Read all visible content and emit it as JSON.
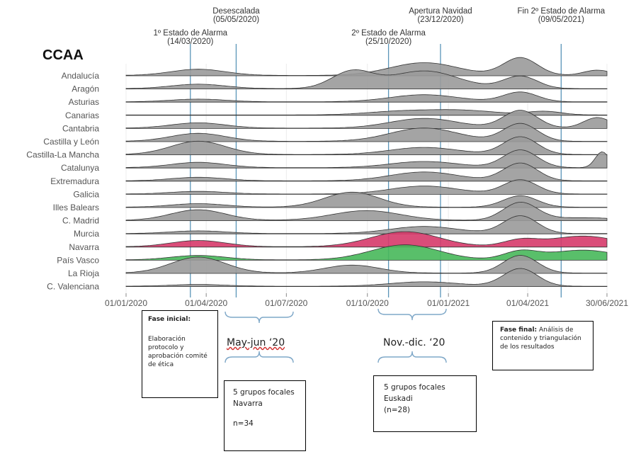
{
  "chart_data": {
    "type": "ridgeline",
    "title": "CCAA",
    "x_range": [
      "2020-01-01",
      "2021-06-30"
    ],
    "x_ticks": [
      "01/01/2020",
      "01/04/2020",
      "01/07/2020",
      "01/10/2020",
      "01/01/2021",
      "01/04/2021",
      "30/06/2021"
    ],
    "events": [
      {
        "label": "1º Estado de Alarma",
        "date_label": "(14/03/2020)",
        "date": "2020-03-14"
      },
      {
        "label": "Desescalada",
        "date_label": "(05/05/2020)",
        "date": "2020-05-05"
      },
      {
        "label": "2º Estado de Alarma",
        "date_label": "(25/10/2020)",
        "date": "2020-10-25"
      },
      {
        "label": "Apertura Navidad",
        "date_label": "(23/12/2020)",
        "date": "2020-12-23"
      },
      {
        "label": "Fin 2º Estado de Alarma",
        "date_label": "(09/05/2021)",
        "date": "2021-05-09"
      }
    ],
    "series": [
      {
        "name": "Andalucía",
        "highlight": "none",
        "peaks": [
          [
            0.15,
            0.35,
            0.08
          ],
          [
            0.62,
            0.72,
            0.1
          ],
          [
            0.82,
            1.0,
            0.05
          ],
          [
            0.98,
            0.3,
            0.04
          ]
        ]
      },
      {
        "name": "Aragón",
        "highlight": "none",
        "peaks": [
          [
            0.15,
            0.25,
            0.08
          ],
          [
            0.47,
            0.95,
            0.06
          ],
          [
            0.62,
            1.0,
            0.1
          ],
          [
            0.82,
            0.7,
            0.05
          ]
        ]
      },
      {
        "name": "Asturias",
        "highlight": "none",
        "peaks": [
          [
            0.15,
            0.15,
            0.08
          ],
          [
            0.62,
            0.4,
            0.1
          ],
          [
            0.82,
            0.55,
            0.05
          ]
        ]
      },
      {
        "name": "Canarias",
        "highlight": "none",
        "peaks": [
          [
            0.57,
            0.2,
            0.1
          ],
          [
            0.7,
            0.25,
            0.1
          ],
          [
            0.87,
            0.2,
            0.05
          ]
        ]
      },
      {
        "name": "Cantabria",
        "highlight": "none",
        "peaks": [
          [
            0.15,
            0.3,
            0.08
          ],
          [
            0.62,
            0.55,
            0.1
          ],
          [
            0.82,
            1.0,
            0.05
          ],
          [
            0.98,
            0.6,
            0.04
          ]
        ]
      },
      {
        "name": "Castilla y León",
        "highlight": "none",
        "peaks": [
          [
            0.15,
            0.45,
            0.08
          ],
          [
            0.62,
            0.75,
            0.1
          ],
          [
            0.82,
            1.0,
            0.05
          ]
        ]
      },
      {
        "name": "Castilla-La Mancha",
        "highlight": "none",
        "peaks": [
          [
            0.15,
            0.75,
            0.08
          ],
          [
            0.62,
            0.4,
            0.1
          ],
          [
            0.82,
            1.0,
            0.05
          ]
        ]
      },
      {
        "name": "Catalunya",
        "highlight": "none",
        "peaks": [
          [
            0.15,
            0.3,
            0.08
          ],
          [
            0.62,
            0.35,
            0.1
          ],
          [
            0.82,
            1.0,
            0.05
          ],
          [
            0.99,
            0.9,
            0.02
          ]
        ]
      },
      {
        "name": "Extremadura",
        "highlight": "none",
        "peaks": [
          [
            0.15,
            0.2,
            0.08
          ],
          [
            0.62,
            0.5,
            0.1
          ],
          [
            0.82,
            1.0,
            0.05
          ]
        ]
      },
      {
        "name": "Galicia",
        "highlight": "none",
        "peaks": [
          [
            0.15,
            0.15,
            0.08
          ],
          [
            0.62,
            0.45,
            0.1
          ],
          [
            0.82,
            0.8,
            0.05
          ]
        ]
      },
      {
        "name": "Illes Balears",
        "highlight": "none",
        "peaks": [
          [
            0.15,
            0.2,
            0.08
          ],
          [
            0.47,
            0.85,
            0.08
          ],
          [
            0.82,
            0.65,
            0.05
          ]
        ]
      },
      {
        "name": "C. Madrid",
        "highlight": "none",
        "peaks": [
          [
            0.15,
            0.6,
            0.08
          ],
          [
            0.5,
            0.55,
            0.1
          ],
          [
            0.82,
            1.0,
            0.05
          ],
          [
            0.95,
            0.15,
            0.1
          ]
        ]
      },
      {
        "name": "Murcia",
        "highlight": "none",
        "peaks": [
          [
            0.15,
            0.15,
            0.08
          ],
          [
            0.62,
            0.4,
            0.1
          ],
          [
            0.82,
            1.0,
            0.05
          ]
        ]
      },
      {
        "name": "Navarra",
        "highlight": "red",
        "peaks": [
          [
            0.15,
            0.35,
            0.08
          ],
          [
            0.58,
            0.85,
            0.1
          ],
          [
            0.82,
            0.35,
            0.05
          ],
          [
            0.95,
            0.6,
            0.1
          ]
        ]
      },
      {
        "name": "País Vasco",
        "highlight": "green",
        "peaks": [
          [
            0.15,
            0.25,
            0.08
          ],
          [
            0.58,
            0.85,
            0.1
          ],
          [
            0.82,
            0.45,
            0.05
          ],
          [
            0.95,
            0.55,
            0.1
          ]
        ]
      },
      {
        "name": "La Rioja",
        "highlight": "none",
        "peaks": [
          [
            0.15,
            0.9,
            0.08
          ],
          [
            0.47,
            0.45,
            0.08
          ],
          [
            0.82,
            1.0,
            0.05
          ]
        ]
      },
      {
        "name": "C. Valenciana",
        "highlight": "none",
        "peaks": [
          [
            0.15,
            0.1,
            0.08
          ],
          [
            0.62,
            0.25,
            0.1
          ],
          [
            0.82,
            1.0,
            0.05
          ]
        ]
      }
    ],
    "colors": {
      "grey_fill": "#9a9a9a",
      "red_fill": "#d63a6a",
      "green_fill": "#47b85a",
      "event_line": "#5a95b8",
      "outline": "#333333"
    }
  },
  "boxes": {
    "fase_inicial": {
      "title": "Fase inicial:",
      "body": "Elaboración protocolo y aprobación comité de ética"
    },
    "may_jun": {
      "label": "May-jun ‘20"
    },
    "nov_dic": {
      "label": "Nov.-dic. ‘20"
    },
    "navarra": {
      "line1": "5 grupos focales Navarra",
      "line2": "n=34"
    },
    "euskadi": {
      "line1": "5 grupos focales Euskadi",
      "line2": "(n=28)"
    },
    "fase_final": {
      "title": "Fase final:",
      "body": "Análisis de contenido y triangulación de los resultados"
    }
  }
}
